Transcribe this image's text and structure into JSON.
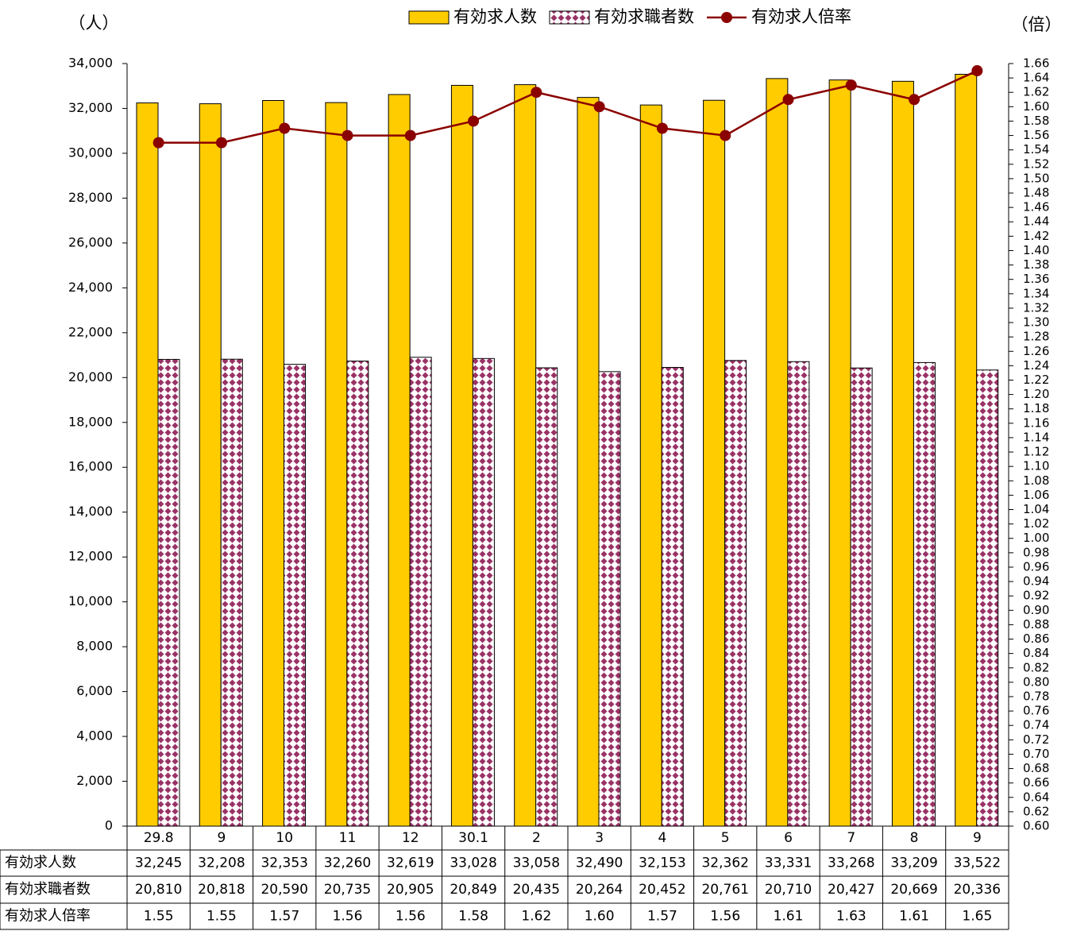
{
  "chart_data": {
    "type": "bar",
    "y_axis_label": "（人）",
    "y2_axis_label": "（倍）",
    "categories": [
      "29.8",
      "9",
      "10",
      "11",
      "12",
      "30.1",
      "2",
      "3",
      "4",
      "5",
      "6",
      "7",
      "8",
      "9"
    ],
    "series": [
      {
        "name": "有効求人数",
        "color": "#ffcc00",
        "values": [
          32245,
          32208,
          32353,
          32260,
          32619,
          33028,
          33058,
          32490,
          32153,
          32362,
          33331,
          33268,
          33209,
          33522
        ],
        "value_labels": [
          "32,245",
          "32,208",
          "32,353",
          "32,260",
          "32,619",
          "33,028",
          "33,058",
          "32,490",
          "32,153",
          "32,362",
          "33,331",
          "33,268",
          "33,209",
          "33,522"
        ]
      },
      {
        "name": "有効求職者数",
        "color": "#993366",
        "values": [
          20810,
          20818,
          20590,
          20735,
          20905,
          20849,
          20435,
          20264,
          20452,
          20761,
          20710,
          20427,
          20669,
          20336
        ],
        "value_labels": [
          "20,810",
          "20,818",
          "20,590",
          "20,735",
          "20,905",
          "20,849",
          "20,435",
          "20,264",
          "20,452",
          "20,761",
          "20,710",
          "20,427",
          "20,669",
          "20,336"
        ]
      },
      {
        "name": "有効求人倍率",
        "color": "#8b0000",
        "type": "line",
        "axis": "y2",
        "values": [
          1.55,
          1.55,
          1.57,
          1.56,
          1.56,
          1.58,
          1.62,
          1.6,
          1.57,
          1.56,
          1.61,
          1.63,
          1.61,
          1.65
        ],
        "value_labels": [
          "1.55",
          "1.55",
          "1.57",
          "1.56",
          "1.56",
          "1.58",
          "1.62",
          "1.60",
          "1.57",
          "1.56",
          "1.61",
          "1.63",
          "1.61",
          "1.65"
        ]
      }
    ],
    "ylim": [
      0,
      34000
    ],
    "yticks": [
      0,
      {
        "value": 2000,
        "label": "2,000"
      },
      {
        "value": 4000,
        "label": "4,000"
      },
      {
        "value": 6000,
        "label": "6,000"
      },
      {
        "value": 8000,
        "label": "8,000"
      },
      {
        "value": 10000,
        "label": "10,000"
      },
      {
        "value": 12000,
        "label": "12,000"
      },
      {
        "value": 14000,
        "label": "14,000"
      },
      {
        "value": 16000,
        "label": "16,000"
      },
      {
        "value": 18000,
        "label": "18,000"
      },
      {
        "value": 20000,
        "label": "20,000"
      },
      {
        "value": 22000,
        "label": "22,000"
      },
      {
        "value": 24000,
        "label": "24,000"
      },
      {
        "value": 26000,
        "label": "26,000"
      },
      {
        "value": 28000,
        "label": "28,000"
      },
      {
        "value": 30000,
        "label": "30,000"
      },
      {
        "value": 32000,
        "label": "32,000"
      },
      {
        "value": 34000,
        "label": "34,000"
      }
    ],
    "y2lim": [
      0.6,
      1.66
    ],
    "y2ticks": [
      {
        "value": 0.6,
        "label": "0.60"
      },
      0.62,
      0.64,
      0.66,
      0.68,
      {
        "value": 0.7,
        "label": "0.70"
      },
      0.72,
      0.74,
      0.76,
      0.78,
      {
        "value": 0.8,
        "label": "0.80"
      },
      0.82,
      0.84,
      0.86,
      0.88,
      {
        "value": 0.9,
        "label": "0.90"
      },
      0.92,
      0.94,
      0.96,
      0.98,
      {
        "value": 1,
        "label": "1.00"
      },
      1.02,
      1.04,
      1.06,
      1.08,
      {
        "value": 1.1,
        "label": "1.10"
      },
      1.12,
      1.14,
      1.16,
      1.18,
      {
        "value": 1.2,
        "label": "1.20"
      },
      1.22,
      1.24,
      1.26,
      1.28,
      {
        "value": 1.3,
        "label": "1.30"
      },
      1.32,
      1.34,
      1.36,
      1.38,
      {
        "value": 1.4,
        "label": "1.40"
      },
      1.42,
      1.44,
      1.46,
      1.48,
      {
        "value": 1.5,
        "label": "1.50"
      },
      1.52,
      1.54,
      1.56,
      1.58,
      {
        "value": 1.6,
        "label": "1.60"
      },
      1.62,
      1.64,
      1.66
    ],
    "grid": false,
    "legend": "top"
  }
}
